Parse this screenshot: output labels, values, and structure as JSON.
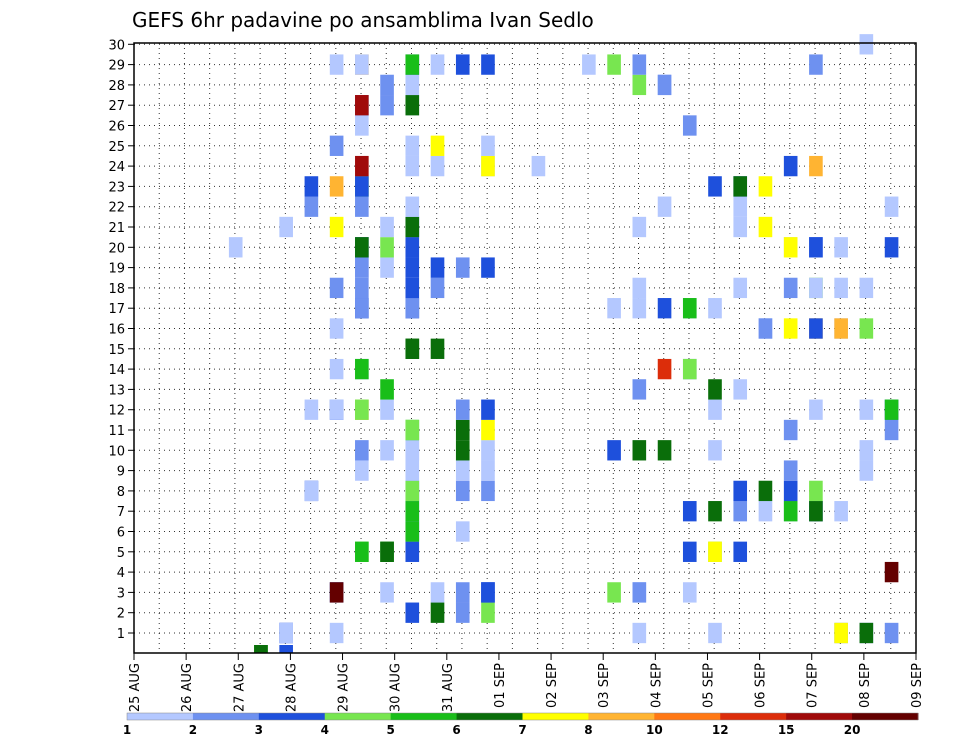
{
  "chart_data": {
    "type": "heatmap",
    "title": "GEFS 6hr padavine po ansamblima Ivan Sedlo",
    "x_ticks": [
      "25 AUG",
      "26 AUG",
      "27 AUG",
      "28 AUG",
      "29 AUG",
      "30 AUG",
      "31 AUG",
      "01 SEP",
      "02 SEP",
      "03 SEP",
      "04 SEP",
      "05 SEP",
      "06 SEP",
      "07 SEP",
      "08 SEP",
      "09 SEP"
    ],
    "y_ticks": [
      "1",
      "2",
      "3",
      "4",
      "5",
      "6",
      "7",
      "8",
      "9",
      "10",
      "11",
      "12",
      "13",
      "14",
      "15",
      "16",
      "17",
      "18",
      "19",
      "20",
      "21",
      "22",
      "23",
      "24",
      "25",
      "26",
      "27",
      "28",
      "29",
      "30"
    ],
    "xlabel": "",
    "ylabel": "",
    "grid": true,
    "legend_placement": "bottom",
    "color_scale": {
      "colors": [
        "#b4c8ff",
        "#6e91f0",
        "#1e50dc",
        "#78e650",
        "#19be19",
        "#0a6e0a",
        "#ffff00",
        "#ffb432",
        "#ff7814",
        "#dc2d0a",
        "#a00a0a",
        "#640000"
      ],
      "labels": [
        "1",
        "2",
        "3",
        "4",
        "5",
        "6",
        "7",
        "8",
        "10",
        "12",
        "15",
        "20"
      ]
    },
    "cells": [
      [
        5,
        0,
        4
      ],
      [
        5,
        0,
        5
      ],
      [
        5,
        0,
        6
      ],
      [
        6,
        0,
        3
      ],
      [
        6,
        1,
        3
      ],
      [
        6,
        1,
        2
      ],
      [
        6,
        1,
        1
      ],
      [
        8,
        1,
        1
      ],
      [
        20,
        1,
        1
      ],
      [
        23,
        1,
        1
      ],
      [
        28,
        1,
        2
      ],
      [
        28,
        1,
        7
      ],
      [
        29,
        1,
        1
      ],
      [
        29,
        1,
        1
      ],
      [
        29,
        1,
        6
      ],
      [
        30,
        1,
        2
      ],
      [
        11,
        2,
        3
      ],
      [
        12,
        2,
        6
      ],
      [
        13,
        2,
        2
      ],
      [
        14,
        2,
        4
      ],
      [
        8,
        3,
        3
      ],
      [
        8,
        3,
        12
      ],
      [
        10,
        3,
        1
      ],
      [
        12,
        3,
        1
      ],
      [
        13,
        3,
        2
      ],
      [
        14,
        3,
        3
      ],
      [
        14,
        3,
        3
      ],
      [
        19,
        3,
        4
      ],
      [
        20,
        3,
        1
      ],
      [
        20,
        3,
        2
      ],
      [
        22,
        3,
        1
      ],
      [
        30,
        4,
        12
      ],
      [
        9,
        5,
        4
      ],
      [
        9,
        5,
        5
      ],
      [
        10,
        5,
        5
      ],
      [
        10,
        5,
        6
      ],
      [
        11,
        5,
        3
      ],
      [
        22,
        5,
        3
      ],
      [
        23,
        5,
        4
      ],
      [
        23,
        5,
        7
      ],
      [
        24,
        5,
        3
      ],
      [
        11,
        6,
        3
      ],
      [
        11,
        6,
        5
      ],
      [
        13,
        6,
        1
      ],
      [
        11,
        7,
        2
      ],
      [
        11,
        7,
        5
      ],
      [
        22,
        7,
        3
      ],
      [
        23,
        7,
        6
      ],
      [
        24,
        7,
        2
      ],
      [
        25,
        7,
        1
      ],
      [
        26,
        7,
        1
      ],
      [
        26,
        7,
        5
      ],
      [
        27,
        7,
        3
      ],
      [
        27,
        7,
        6
      ],
      [
        28,
        7,
        1
      ],
      [
        7,
        8,
        3
      ],
      [
        7,
        8,
        1
      ],
      [
        11,
        8,
        3
      ],
      [
        11,
        8,
        4
      ],
      [
        13,
        8,
        2
      ],
      [
        14,
        8,
        2
      ],
      [
        24,
        8,
        3
      ],
      [
        25,
        8,
        6
      ],
      [
        26,
        8,
        3
      ],
      [
        27,
        8,
        4
      ],
      [
        9,
        9,
        1
      ],
      [
        11,
        9,
        1
      ],
      [
        13,
        9,
        1
      ],
      [
        14,
        9,
        1
      ],
      [
        26,
        9,
        2
      ],
      [
        29,
        9,
        1
      ],
      [
        9,
        10,
        2
      ],
      [
        10,
        10,
        1
      ],
      [
        11,
        10,
        1
      ],
      [
        11,
        10,
        1
      ],
      [
        13,
        10,
        6
      ],
      [
        14,
        10,
        1
      ],
      [
        19,
        10,
        3
      ],
      [
        20,
        10,
        6
      ],
      [
        21,
        10,
        6
      ],
      [
        23,
        10,
        1
      ],
      [
        29,
        10,
        1
      ],
      [
        11,
        11,
        5
      ],
      [
        11,
        11,
        4
      ],
      [
        13,
        11,
        6
      ],
      [
        14,
        11,
        7
      ],
      [
        26,
        11,
        2
      ],
      [
        30,
        11,
        2
      ],
      [
        7,
        12,
        1
      ],
      [
        8,
        12,
        3
      ],
      [
        8,
        12,
        1
      ],
      [
        9,
        12,
        8
      ],
      [
        9,
        12,
        4
      ],
      [
        10,
        12,
        1
      ],
      [
        13,
        12,
        2
      ],
      [
        14,
        12,
        3
      ],
      [
        23,
        12,
        1
      ],
      [
        27,
        12,
        1
      ],
      [
        29,
        12,
        1
      ],
      [
        30,
        12,
        3
      ],
      [
        30,
        12,
        5
      ],
      [
        10,
        13,
        5
      ],
      [
        20,
        13,
        2
      ],
      [
        23,
        13,
        6
      ],
      [
        24,
        13,
        1
      ],
      [
        8,
        14,
        1
      ],
      [
        9,
        14,
        1
      ],
      [
        9,
        14,
        5
      ],
      [
        21,
        14,
        10
      ],
      [
        22,
        14,
        2
      ],
      [
        22,
        14,
        4
      ],
      [
        11,
        15,
        6
      ],
      [
        11,
        15,
        6
      ],
      [
        12,
        15,
        6
      ],
      [
        8,
        16,
        1
      ],
      [
        25,
        16,
        1
      ],
      [
        25,
        16,
        2
      ],
      [
        26,
        16,
        7
      ],
      [
        27,
        16,
        8
      ],
      [
        27,
        16,
        3
      ],
      [
        28,
        16,
        1
      ],
      [
        28,
        16,
        8
      ],
      [
        29,
        16,
        4
      ],
      [
        9,
        17,
        3
      ],
      [
        9,
        17,
        2
      ],
      [
        11,
        17,
        3
      ],
      [
        11,
        17,
        2
      ],
      [
        19,
        17,
        1
      ],
      [
        20,
        17,
        1
      ],
      [
        21,
        17,
        3
      ],
      [
        22,
        17,
        1
      ],
      [
        22,
        17,
        5
      ],
      [
        23,
        17,
        1
      ],
      [
        8,
        18,
        2
      ],
      [
        9,
        18,
        2
      ],
      [
        11,
        18,
        3
      ],
      [
        12,
        18,
        2
      ],
      [
        20,
        18,
        1
      ],
      [
        24,
        18,
        1
      ],
      [
        26,
        18,
        2
      ],
      [
        27,
        18,
        4
      ],
      [
        27,
        18,
        1
      ],
      [
        28,
        18,
        1
      ],
      [
        29,
        18,
        1
      ],
      [
        9,
        19,
        1
      ],
      [
        9,
        19,
        2
      ],
      [
        10,
        19,
        1
      ],
      [
        11,
        19,
        3
      ],
      [
        12,
        19,
        3
      ],
      [
        13,
        19,
        2
      ],
      [
        14,
        19,
        3
      ],
      [
        4,
        20,
        1
      ],
      [
        9,
        20,
        3
      ],
      [
        9,
        20,
        6
      ],
      [
        10,
        20,
        4
      ],
      [
        11,
        20,
        3
      ],
      [
        26,
        20,
        1
      ],
      [
        26,
        20,
        7
      ],
      [
        27,
        20,
        2
      ],
      [
        27,
        20,
        3
      ],
      [
        28,
        20,
        1
      ],
      [
        30,
        20,
        3
      ],
      [
        6,
        21,
        1
      ],
      [
        8,
        21,
        7
      ],
      [
        10,
        21,
        1
      ],
      [
        11,
        21,
        3
      ],
      [
        11,
        21,
        6
      ],
      [
        20,
        21,
        1
      ],
      [
        24,
        21,
        1
      ],
      [
        25,
        21,
        7
      ],
      [
        7,
        22,
        2
      ],
      [
        9,
        22,
        2
      ],
      [
        11,
        22,
        1
      ],
      [
        21,
        22,
        1
      ],
      [
        24,
        22,
        1
      ],
      [
        30,
        22,
        1
      ],
      [
        7,
        23,
        3
      ],
      [
        8,
        23,
        8
      ],
      [
        9,
        23,
        5
      ],
      [
        9,
        23,
        3
      ],
      [
        23,
        23,
        3
      ],
      [
        24,
        23,
        3
      ],
      [
        24,
        23,
        6
      ],
      [
        25,
        23,
        7
      ],
      [
        9,
        24,
        11
      ],
      [
        11,
        24,
        1
      ],
      [
        12,
        24,
        1
      ],
      [
        14,
        24,
        1
      ],
      [
        14,
        24,
        7
      ],
      [
        16,
        24,
        1
      ],
      [
        26,
        24,
        3
      ],
      [
        27,
        24,
        8
      ],
      [
        8,
        25,
        2
      ],
      [
        11,
        25,
        1
      ],
      [
        12,
        25,
        7
      ],
      [
        14,
        25,
        1
      ],
      [
        9,
        26,
        1
      ],
      [
        22,
        26,
        2
      ],
      [
        9,
        27,
        2
      ],
      [
        9,
        27,
        11
      ],
      [
        10,
        27,
        2
      ],
      [
        11,
        27,
        1
      ],
      [
        11,
        27,
        6
      ],
      [
        10,
        28,
        2
      ],
      [
        11,
        28,
        1
      ],
      [
        20,
        28,
        4
      ],
      [
        21,
        28,
        1
      ],
      [
        21,
        28,
        2
      ],
      [
        8,
        29,
        1
      ],
      [
        9,
        29,
        8
      ],
      [
        9,
        29,
        1
      ],
      [
        11,
        29,
        3
      ],
      [
        11,
        29,
        5
      ],
      [
        12,
        29,
        1
      ],
      [
        13,
        29,
        3
      ],
      [
        14,
        29,
        3
      ],
      [
        18,
        29,
        1
      ],
      [
        19,
        29,
        4
      ],
      [
        20,
        29,
        2
      ],
      [
        27,
        29,
        2
      ],
      [
        29,
        30,
        1
      ]
    ]
  }
}
